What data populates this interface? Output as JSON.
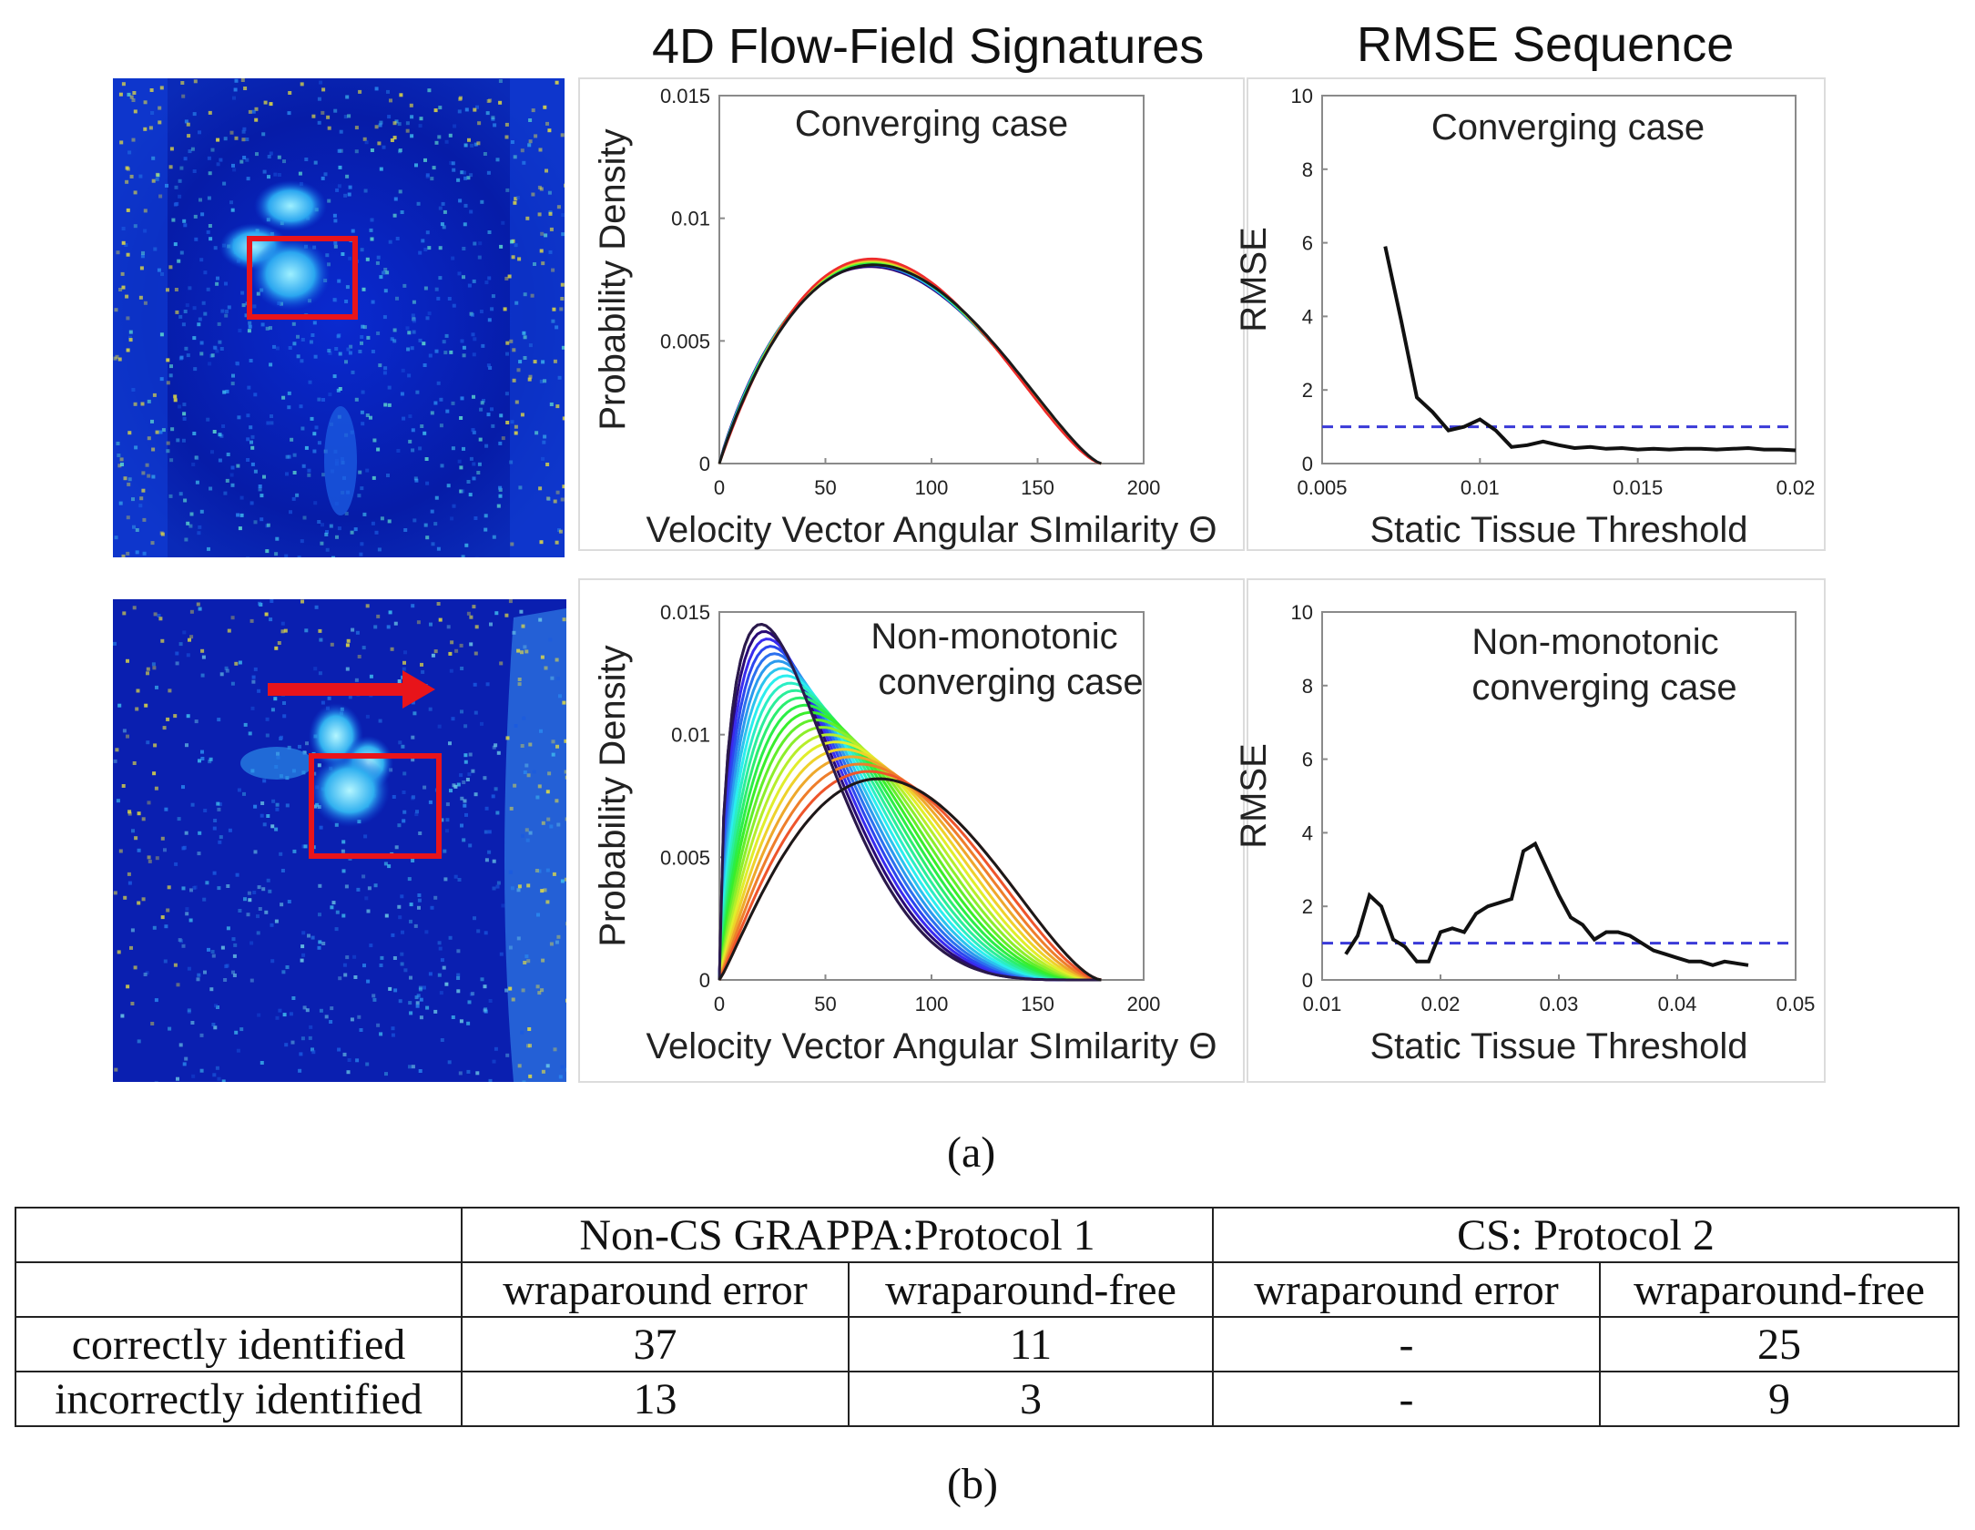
{
  "headers": {
    "signatures": "4D Flow-Field Signatures",
    "rmse": "RMSE Sequence"
  },
  "captions": {
    "a": "(a)",
    "b": "(b)"
  },
  "colors": {
    "crop_box": "#e8141a",
    "threshold_line": "#3a3ad8",
    "rmse_line": "#111111",
    "map_background": "#0a1fb0"
  },
  "chart_data": [
    {
      "type": "line",
      "panel": "top-signatures",
      "annotation": "Converging case",
      "xlabel": "Velocity Vector Angular SImilarity Θ",
      "ylabel": "Probability Density",
      "xlim": [
        0,
        200
      ],
      "ylim": [
        0,
        0.015
      ],
      "xticks": [
        "0",
        "50",
        "100",
        "150",
        "200"
      ],
      "yticks": [
        "0",
        "0.005",
        "0.01",
        "0.015"
      ],
      "curve_count": 12,
      "peak_theta": 78,
      "peak_density": 0.0082,
      "support": [
        0,
        180
      ]
    },
    {
      "type": "line",
      "panel": "top-rmse",
      "annotation": "Converging case",
      "xlabel": "Static Tissue Threshold",
      "ylabel": "RMSE",
      "xlim": [
        0.005,
        0.02
      ],
      "ylim": [
        0,
        10
      ],
      "xticks": [
        "0.005",
        "0.01",
        "0.015",
        "0.02"
      ],
      "yticks": [
        "0",
        "2",
        "4",
        "6",
        "8",
        "10"
      ],
      "threshold": 1.0,
      "x": [
        0.007,
        0.0075,
        0.008,
        0.0085,
        0.009,
        0.0095,
        0.01,
        0.0105,
        0.011,
        0.0115,
        0.012,
        0.0125,
        0.013,
        0.0135,
        0.014,
        0.0145,
        0.015,
        0.0155,
        0.016,
        0.0165,
        0.017,
        0.0175,
        0.018,
        0.0185,
        0.019,
        0.0195,
        0.02
      ],
      "y": [
        5.9,
        3.9,
        1.8,
        1.4,
        0.9,
        1.0,
        1.2,
        0.9,
        0.45,
        0.5,
        0.6,
        0.5,
        0.42,
        0.45,
        0.4,
        0.42,
        0.38,
        0.4,
        0.38,
        0.4,
        0.4,
        0.38,
        0.4,
        0.42,
        0.38,
        0.38,
        0.36
      ]
    },
    {
      "type": "line",
      "panel": "bottom-signatures",
      "annotation_line1": "Non-monotonic",
      "annotation_line2": "converging case",
      "xlabel": "Velocity Vector Angular SImilarity Θ",
      "ylabel": "Probability Density",
      "xlim": [
        0,
        200
      ],
      "ylim": [
        0,
        0.015
      ],
      "xticks": [
        "0",
        "50",
        "100",
        "150",
        "200"
      ],
      "yticks": [
        "0",
        "0.005",
        "0.01",
        "0.015"
      ],
      "curve_count": 22,
      "first_peak_theta": 28,
      "first_peak_density": 0.0145,
      "last_peak_theta": 76,
      "last_peak_density": 0.0082,
      "support": [
        0,
        180
      ]
    },
    {
      "type": "line",
      "panel": "bottom-rmse",
      "annotation_line1": "Non-monotonic",
      "annotation_line2": "converging case",
      "xlabel": "Static Tissue Threshold",
      "ylabel": "RMSE",
      "xlim": [
        0.01,
        0.05
      ],
      "ylim": [
        0,
        10
      ],
      "xticks": [
        "0.01",
        "0.02",
        "0.03",
        "0.04",
        "0.05"
      ],
      "yticks": [
        "0",
        "2",
        "4",
        "6",
        "8",
        "10"
      ],
      "threshold": 1.0,
      "x": [
        0.012,
        0.013,
        0.014,
        0.015,
        0.016,
        0.017,
        0.018,
        0.019,
        0.02,
        0.021,
        0.022,
        0.023,
        0.024,
        0.025,
        0.026,
        0.027,
        0.028,
        0.029,
        0.03,
        0.031,
        0.032,
        0.033,
        0.034,
        0.035,
        0.036,
        0.037,
        0.038,
        0.039,
        0.04,
        0.041,
        0.042,
        0.043,
        0.044,
        0.045,
        0.046
      ],
      "y": [
        0.7,
        1.2,
        2.3,
        2.0,
        1.1,
        0.9,
        0.5,
        0.5,
        1.3,
        1.4,
        1.3,
        1.8,
        2.0,
        2.1,
        2.2,
        3.5,
        3.7,
        3.0,
        2.3,
        1.7,
        1.5,
        1.1,
        1.3,
        1.3,
        1.2,
        1.0,
        0.8,
        0.7,
        0.6,
        0.5,
        0.5,
        0.4,
        0.5,
        0.45,
        0.4
      ]
    }
  ],
  "table": {
    "group_headers": [
      "",
      "Non-CS GRAPPA:Protocol 1",
      "CS: Protocol 2"
    ],
    "sub_headers": [
      "",
      "wraparound error",
      "wraparound-free",
      "wraparound error",
      "wraparound-free"
    ],
    "rows": [
      {
        "label": "correctly identified",
        "values": [
          "37",
          "11",
          "-",
          "25"
        ]
      },
      {
        "label": "incorrectly identified",
        "values": [
          "13",
          "3",
          "-",
          "9"
        ]
      }
    ]
  }
}
